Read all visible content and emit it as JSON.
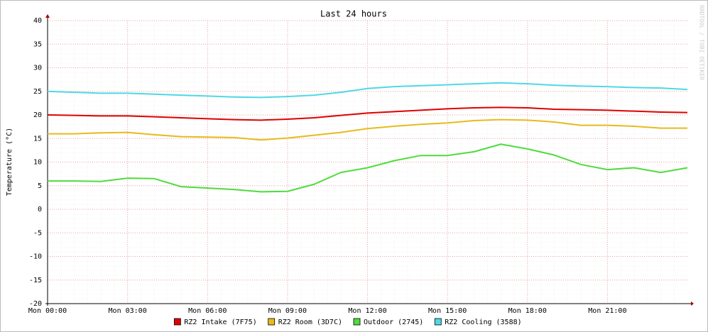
{
  "chart_data": {
    "type": "line",
    "title": "Last 24 hours",
    "y_label": "Temperature (°C)",
    "watermark": "RRDTOOL / TOBI OETIKER",
    "x": [
      0,
      1,
      2,
      3,
      4,
      5,
      6,
      7,
      8,
      9,
      10,
      11,
      12,
      13,
      14,
      15,
      16,
      17,
      18,
      19,
      20,
      21,
      22,
      23,
      24
    ],
    "xlim": [
      0,
      24
    ],
    "xticks": [
      {
        "value": 0,
        "label": "Mon 00:00"
      },
      {
        "value": 3,
        "label": "Mon 03:00"
      },
      {
        "value": 6,
        "label": "Mon 06:00"
      },
      {
        "value": 9,
        "label": "Mon 09:00"
      },
      {
        "value": 12,
        "label": "Mon 12:00"
      },
      {
        "value": 15,
        "label": "Mon 15:00"
      },
      {
        "value": 18,
        "label": "Mon 18:00"
      },
      {
        "value": 21,
        "label": "Mon 21:00"
      }
    ],
    "ylim": [
      -20,
      40
    ],
    "yticks": [
      -20,
      -15,
      -10,
      -5,
      0,
      5,
      10,
      15,
      20,
      25,
      30,
      35,
      40
    ],
    "grid": true,
    "series": [
      {
        "name": "RZ2 Intake (7F75)",
        "color": "#e00000",
        "values": [
          20,
          19.9,
          19.8,
          19.8,
          19.6,
          19.4,
          19.2,
          19.0,
          18.9,
          19.1,
          19.4,
          19.9,
          20.4,
          20.7,
          21.0,
          21.3,
          21.5,
          21.6,
          21.5,
          21.2,
          21.1,
          21.0,
          20.8,
          20.6,
          20.5
        ]
      },
      {
        "name": "RZ2 Room (3D7C)",
        "color": "#e6bb1c",
        "values": [
          16,
          16,
          16.2,
          16.3,
          15.8,
          15.4,
          15.3,
          15.2,
          14.7,
          15.1,
          15.7,
          16.3,
          17.1,
          17.6,
          18.0,
          18.3,
          18.8,
          19.0,
          18.9,
          18.5,
          17.8,
          17.8,
          17.6,
          17.2,
          17.2
        ]
      },
      {
        "name": "Outdoor (2745)",
        "color": "#4fdc3c",
        "values": [
          6,
          6,
          5.9,
          6.6,
          6.5,
          4.8,
          4.5,
          4.2,
          3.7,
          3.8,
          5.3,
          7.8,
          8.8,
          10.3,
          11.4,
          11.4,
          12.2,
          13.8,
          12.8,
          11.5,
          9.5,
          8.4,
          8.8,
          7.8,
          8.8
        ]
      },
      {
        "name": "RZ2 Cooling (3588)",
        "color": "#4fd8e6",
        "values": [
          25,
          24.8,
          24.6,
          24.6,
          24.4,
          24.2,
          24.0,
          23.8,
          23.7,
          23.9,
          24.2,
          24.8,
          25.6,
          26.0,
          26.2,
          26.4,
          26.6,
          26.8,
          26.6,
          26.3,
          26.1,
          26.0,
          25.8,
          25.7,
          25.4
        ]
      }
    ]
  }
}
